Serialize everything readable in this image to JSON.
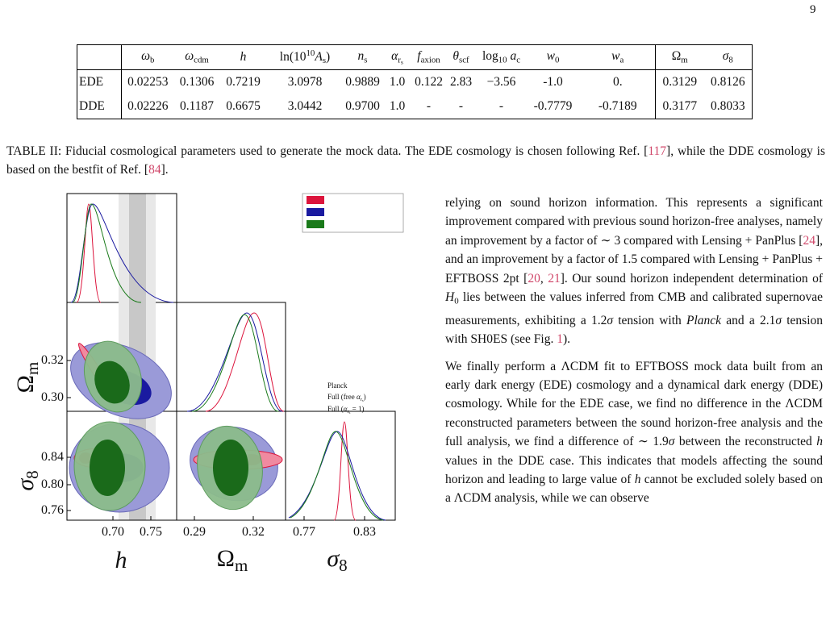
{
  "page_number": "9",
  "table": {
    "header": [
      [
        {
          "it": "ω"
        },
        {
          "sub": "b"
        }
      ],
      [
        {
          "it": "ω"
        },
        {
          "sub": "cdm"
        }
      ],
      [
        {
          "it": "h"
        }
      ],
      [
        {
          "text": "ln(10"
        },
        {
          "sup": "10"
        },
        {
          "it": "A"
        },
        {
          "sub": "s"
        },
        {
          "text": ")"
        }
      ],
      [
        {
          "it": "n"
        },
        {
          "sub": "s"
        }
      ],
      [
        {
          "it": "α"
        },
        {
          "sub": "r"
        },
        {
          "subsub": "s"
        }
      ],
      [
        {
          "it": "f"
        },
        {
          "sub": "axion"
        }
      ],
      [
        {
          "it": "θ"
        },
        {
          "sub": "scf"
        }
      ],
      [
        {
          "text": "log"
        },
        {
          "sub": "10"
        },
        {
          "it": " a"
        },
        {
          "sub": "c"
        }
      ],
      [
        {
          "it": "w"
        },
        {
          "sub": "0"
        }
      ],
      [
        {
          "it": "w"
        },
        {
          "sub": "a"
        }
      ],
      [
        {
          "text": "Ω"
        },
        {
          "sub": "m"
        }
      ],
      [
        {
          "it": "σ"
        },
        {
          "sub": "8"
        }
      ]
    ],
    "rows": [
      [
        "EDE",
        "0.02253",
        "0.1306",
        "0.7219",
        "3.0978",
        "0.9889",
        "1.0",
        "0.122",
        "2.83",
        "−3.56",
        "-1.0",
        "0.",
        "0.3129",
        "0.8126"
      ],
      [
        "DDE",
        "0.02226",
        "0.1187",
        "0.6675",
        "3.0442",
        "0.9700",
        "1.0",
        "-",
        "-",
        "-",
        "-0.7779",
        "-0.7189",
        "0.3177",
        "0.8033"
      ]
    ]
  },
  "caption": [
    {
      "text": "TABLE II: Fiducial cosmological parameters used to generate the mock data. The EDE cosmology is chosen following Ref. ["
    },
    {
      "ref": "117"
    },
    {
      "text": "], while the DDE cosmology is based on the bestfit of Ref. ["
    },
    {
      "ref": "84"
    },
    {
      "text": "]."
    }
  ],
  "figure": {
    "legend": [
      [
        {
          "text": "Planck"
        }
      ],
      [
        {
          "text": "Full (free "
        },
        {
          "it": "α"
        },
        {
          "sub": "r"
        },
        {
          "subsub": "s"
        },
        {
          "text": ")"
        }
      ],
      [
        {
          "text": "Full ("
        },
        {
          "it": "α"
        },
        {
          "sub": "r"
        },
        {
          "subsub": "s"
        },
        {
          "text": " = 1)"
        }
      ]
    ],
    "axis_labels": {
      "h": [
        {
          "it": "h"
        }
      ],
      "omega_m": [
        {
          "text": "Ω"
        },
        {
          "sub": "m"
        }
      ],
      "sigma_8": [
        {
          "it": "σ"
        },
        {
          "sub": "8"
        }
      ]
    },
    "x_ticks": {
      "h": [
        "0.70",
        "0.75"
      ],
      "omega_m": [
        "0.29",
        "0.32"
      ],
      "sigma_8": [
        "0.77",
        "0.83"
      ]
    },
    "y_ticks": {
      "omega_m": [
        "0.32",
        "0.30"
      ],
      "sigma_8": [
        "0.84",
        "0.80",
        "0.76"
      ]
    }
  },
  "body": [
    [
      {
        "text": "relying on sound horizon information. This represents a significant improvement compared with previous sound horizon-free analyses, namely an improvement by a factor of ∼ 3 compared with Lensing + PanPlus ["
      },
      {
        "ref": "24"
      },
      {
        "text": "], and an improvement by a factor of 1.5 compared with Lensing + PanPlus + EFTBOSS 2pt ["
      },
      {
        "ref": "20"
      },
      {
        "text": ", "
      },
      {
        "ref": "21"
      },
      {
        "text": "]. Our sound horizon independent determination of "
      },
      {
        "it": "H"
      },
      {
        "sub": "0"
      },
      {
        "text": " lies between the values inferred from CMB and calibrated supernovae measurements, exhibiting a 1.2"
      },
      {
        "it": "σ"
      },
      {
        "text": " tension with "
      },
      {
        "it": "Planck"
      },
      {
        "text": " and a 2.1"
      },
      {
        "it": "σ"
      },
      {
        "text": " tension with SH0ES (see Fig. "
      },
      {
        "ref": "1"
      },
      {
        "text": ")."
      }
    ],
    [
      {
        "text": "We finally perform a ΛCDM fit to EFTBOSS mock data built from an early dark energy (EDE) cosmology and a dynamical dark energy (DDE) cosmology. While for the EDE case, we find no difference in the ΛCDM reconstructed parameters between the sound horizon-free analysis and the full analysis, we find a difference of ∼ 1.9"
      },
      {
        "it": "σ"
      },
      {
        "text": " between the reconstructed "
      },
      {
        "it": "h"
      },
      {
        "text": " values in the DDE case. This indicates that models affecting the sound horizon and leading to large value of "
      },
      {
        "it": "h"
      },
      {
        "text": " cannot be excluded solely based on a ΛCDM analysis, while we can observe"
      }
    ]
  ]
}
